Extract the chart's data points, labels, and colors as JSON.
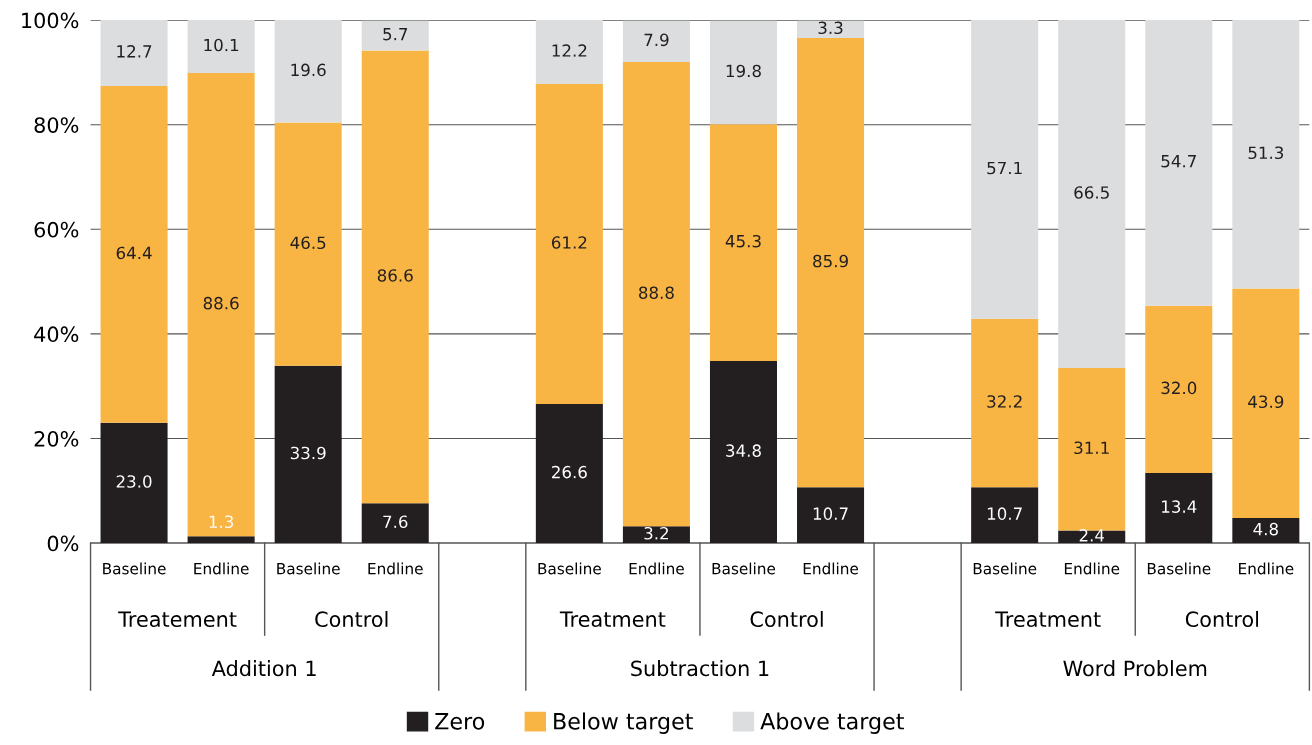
{
  "chart_data": {
    "type": "bar",
    "stacked": true,
    "categories": [
      "Baseline",
      "Endline",
      "Baseline",
      "Endline",
      null,
      "Baseline",
      "Endline",
      "Baseline",
      "Endline",
      null,
      "Baseline",
      "Endline",
      "Baseline",
      "Endline"
    ],
    "series": [
      {
        "name": "Zero",
        "color": "#231f20",
        "values": [
          23.0,
          1.3,
          33.9,
          7.6,
          null,
          26.6,
          3.2,
          34.8,
          10.7,
          null,
          10.7,
          2.4,
          13.4,
          4.8
        ],
        "value_labels": [
          "23.0",
          "1.3",
          "33.9",
          "7.6",
          null,
          "26.6",
          "3.2",
          "34.8",
          "10.7",
          null,
          "10.7",
          "2.4",
          "13.4",
          "4.8"
        ]
      },
      {
        "name": "Below target",
        "color": "#f9b544",
        "values": [
          64.4,
          88.6,
          46.5,
          86.6,
          null,
          61.2,
          88.8,
          45.3,
          85.9,
          null,
          32.2,
          31.1,
          32.0,
          43.9
        ],
        "value_labels": [
          "64.4",
          "88.6",
          "46.5",
          "86.6",
          null,
          "61.2",
          "88.8",
          "45.3",
          "85.9",
          null,
          "32.2",
          "31.1",
          "32.0",
          "43.9"
        ]
      },
      {
        "name": "Above target",
        "color": "#dcdddf",
        "values": [
          12.7,
          10.1,
          19.6,
          5.7,
          null,
          12.2,
          7.9,
          19.8,
          3.3,
          null,
          57.1,
          66.5,
          54.7,
          51.3
        ],
        "value_labels": [
          "12.7",
          "10.1",
          "19.6",
          "5.7",
          null,
          "12.2",
          "7.9",
          "19.8",
          "3.3",
          null,
          "57.1",
          "66.5",
          "54.7",
          "51.3"
        ]
      }
    ],
    "annotations": [
      "Treatement",
      "Control",
      "Treatment",
      "Control",
      "Treatment",
      "Control",
      "Addition 1",
      "Subtraction 1",
      "Word Problem"
    ],
    "ylim": [
      0,
      100
    ],
    "yticks": [
      {
        "value": 0,
        "label": "0%"
      },
      {
        "value": 20,
        "label": "20%"
      },
      {
        "value": 40,
        "label": "40%"
      },
      {
        "value": 60,
        "label": "60%"
      },
      {
        "value": 80,
        "label": "80%"
      },
      {
        "value": 100,
        "label": "100%"
      }
    ],
    "grid": "y",
    "legend": "bottom"
  }
}
